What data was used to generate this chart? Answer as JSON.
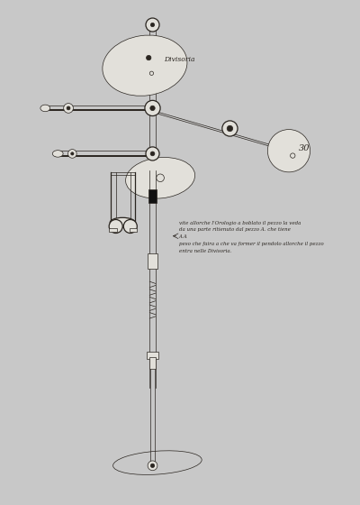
{
  "background_color": "#c8c8c8",
  "paper_color": "#e2e0da",
  "ink_color": "#2a2520",
  "fig_width": 4.0,
  "fig_height": 5.6,
  "dpi": 100,
  "annotation1": "Divisoria",
  "annotation2": "30",
  "annotation3": "vite allorche l'Orologio a boblato il pezzo la veda\nda una parte ritienuto dal pezzo A. che tiene\nA A\npeso che faira a che va former il pendolo allorche il pezzo\nentra nelle Divisoria."
}
